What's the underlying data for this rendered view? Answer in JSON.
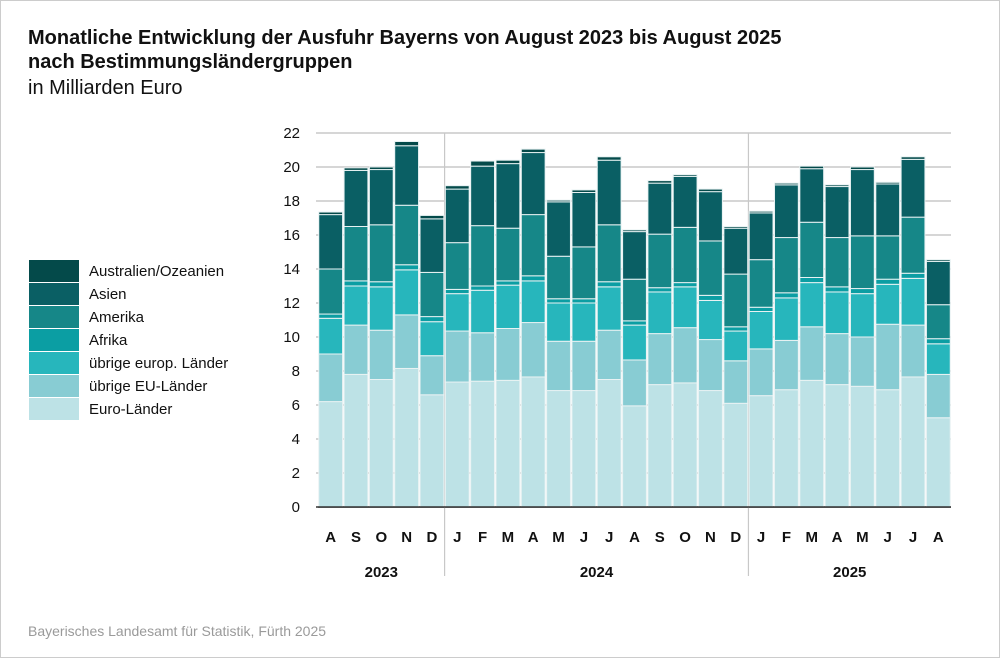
{
  "chart_data": {
    "type": "bar",
    "stacked": true,
    "title": "Monatliche Entwicklung der Ausfuhr Bayerns von August 2023 bis August 2025",
    "title2": "nach Bestimmungsländergruppen",
    "subtitle": "in Milliarden Euro",
    "ylim": [
      0,
      22
    ],
    "yticks": [
      0,
      2,
      4,
      6,
      8,
      10,
      12,
      14,
      16,
      18,
      20,
      22
    ],
    "categories": [
      "A",
      "S",
      "O",
      "N",
      "D",
      "J",
      "F",
      "M",
      "A",
      "M",
      "J",
      "J",
      "A",
      "S",
      "O",
      "N",
      "D",
      "J",
      "F",
      "M",
      "A",
      "M",
      "J",
      "J",
      "A"
    ],
    "years": [
      {
        "label": "2023",
        "from": 0,
        "to": 4
      },
      {
        "label": "2024",
        "from": 5,
        "to": 16
      },
      {
        "label": "2025",
        "from": 17,
        "to": 24
      }
    ],
    "legend_position": "left",
    "series": [
      {
        "name": "Euro-Länder",
        "color": "#bde2e6",
        "values": [
          6.2,
          7.8,
          7.5,
          8.15,
          6.6,
          7.35,
          7.4,
          7.45,
          7.65,
          6.85,
          6.85,
          7.5,
          5.95,
          7.2,
          7.3,
          6.85,
          6.1,
          6.55,
          6.9,
          7.45,
          7.2,
          7.1,
          6.9,
          7.65,
          5.25
        ]
      },
      {
        "name": "übrige EU-Länder",
        "color": "#88ccd3",
        "values": [
          2.8,
          2.9,
          2.9,
          3.15,
          2.3,
          3.0,
          2.85,
          3.05,
          3.2,
          2.9,
          2.9,
          2.9,
          2.7,
          3.0,
          3.25,
          3.0,
          2.5,
          2.75,
          2.9,
          3.15,
          3.0,
          2.9,
          3.85,
          3.05,
          2.55
        ]
      },
      {
        "name": "übrige europ. Länder",
        "color": "#27b6bc",
        "values": [
          2.1,
          2.3,
          2.55,
          2.65,
          2.0,
          2.2,
          2.5,
          2.55,
          2.45,
          2.25,
          2.25,
          2.55,
          2.05,
          2.45,
          2.4,
          2.3,
          1.75,
          2.2,
          2.5,
          2.6,
          2.45,
          2.55,
          2.35,
          2.75,
          1.8
        ]
      },
      {
        "name": "Afrika",
        "color": "#0b9ea3",
        "values": [
          0.25,
          0.3,
          0.3,
          0.3,
          0.3,
          0.25,
          0.25,
          0.25,
          0.3,
          0.25,
          0.25,
          0.3,
          0.25,
          0.25,
          0.25,
          0.3,
          0.25,
          0.25,
          0.3,
          0.3,
          0.3,
          0.3,
          0.3,
          0.3,
          0.3
        ]
      },
      {
        "name": "Amerika",
        "color": "#168788",
        "values": [
          2.65,
          3.2,
          3.35,
          3.5,
          2.6,
          2.75,
          3.55,
          3.1,
          3.6,
          2.5,
          3.05,
          3.35,
          2.45,
          3.15,
          3.25,
          3.2,
          3.1,
          2.8,
          3.25,
          3.25,
          2.9,
          3.1,
          2.55,
          3.3,
          2.0
        ]
      },
      {
        "name": "Asien",
        "color": "#0a5f64",
        "values": [
          3.2,
          3.3,
          3.25,
          3.5,
          3.15,
          3.15,
          3.5,
          3.8,
          3.65,
          3.2,
          3.2,
          3.8,
          2.8,
          3.0,
          3.0,
          2.9,
          2.7,
          2.75,
          3.1,
          3.15,
          3.0,
          3.9,
          3.05,
          3.4,
          2.55
        ]
      },
      {
        "name": "Australien/Ozeanien",
        "color": "#044a4a",
        "values": [
          0.15,
          0.15,
          0.15,
          0.25,
          0.2,
          0.2,
          0.3,
          0.2,
          0.2,
          0.1,
          0.15,
          0.2,
          0.1,
          0.15,
          0.1,
          0.15,
          0.1,
          0.1,
          0.1,
          0.15,
          0.1,
          0.15,
          0.1,
          0.15,
          0.1
        ]
      }
    ]
  },
  "footer": "Bayerisches Landesamt für Statistik, Fürth 2025"
}
